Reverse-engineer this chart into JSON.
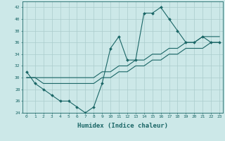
{
  "title": "",
  "xlabel": "Humidex (Indice chaleur)",
  "ylabel": "",
  "bg_color": "#cce8e8",
  "grid_color": "#aacccc",
  "line_color": "#1a6666",
  "xlim": [
    -0.5,
    23.4
  ],
  "ylim": [
    24,
    43
  ],
  "yticks": [
    24,
    26,
    28,
    30,
    32,
    34,
    36,
    38,
    40,
    42
  ],
  "xticks": [
    0,
    1,
    2,
    3,
    4,
    5,
    6,
    7,
    8,
    9,
    10,
    11,
    12,
    13,
    14,
    15,
    16,
    17,
    18,
    19,
    20,
    21,
    22,
    23
  ],
  "line1_x": [
    0,
    1,
    2,
    3,
    4,
    5,
    6,
    7,
    8,
    9,
    10,
    11,
    12,
    13,
    14,
    15,
    16,
    17,
    18,
    19,
    20,
    21,
    22,
    23
  ],
  "line1_y": [
    31,
    29,
    28,
    27,
    26,
    26,
    25,
    24,
    25,
    29,
    35,
    37,
    33,
    33,
    41,
    41,
    42,
    40,
    38,
    36,
    36,
    37,
    36,
    36
  ],
  "line2_x": [
    0,
    1,
    2,
    3,
    4,
    5,
    6,
    7,
    8,
    9,
    10,
    11,
    12,
    13,
    14,
    15,
    16,
    17,
    18,
    19,
    20,
    21,
    22,
    23
  ],
  "line2_y": [
    30,
    30,
    29,
    29,
    29,
    29,
    29,
    29,
    29,
    30,
    30,
    31,
    31,
    32,
    32,
    33,
    33,
    34,
    34,
    35,
    35,
    35,
    36,
    36
  ],
  "line3_x": [
    0,
    1,
    2,
    3,
    4,
    5,
    6,
    7,
    8,
    9,
    10,
    11,
    12,
    13,
    14,
    15,
    16,
    17,
    18,
    19,
    20,
    21,
    22,
    23
  ],
  "line3_y": [
    30,
    30,
    30,
    30,
    30,
    30,
    30,
    30,
    30,
    31,
    31,
    32,
    32,
    33,
    33,
    34,
    34,
    35,
    35,
    36,
    36,
    37,
    37,
    37
  ]
}
